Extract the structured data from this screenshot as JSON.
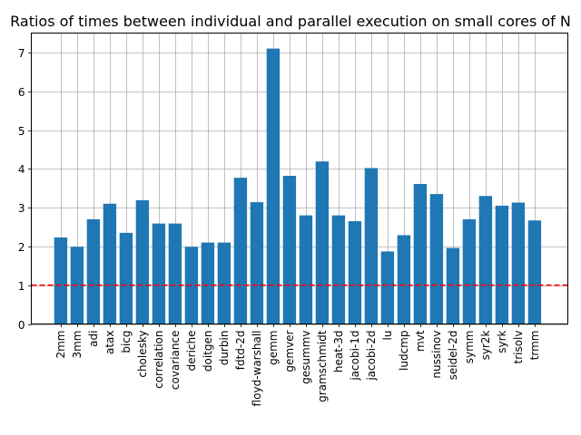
{
  "chart_data": {
    "type": "bar",
    "title": "Ratios of times between individual and parallel execution on small cores of N",
    "xlabel": "",
    "ylabel": "",
    "categories": [
      "2mm",
      "3mm",
      "adi",
      "atax",
      "bicg",
      "cholesky",
      "correlation",
      "covariance",
      "deriche",
      "doitgen",
      "durbin",
      "fdtd-2d",
      "floyd-warshall",
      "gemm",
      "gemver",
      "gesummv",
      "gramschmidt",
      "heat-3d",
      "jacobi-1d",
      "jacobi-2d",
      "lu",
      "ludcmp",
      "mvt",
      "nussinov",
      "seidel-2d",
      "symm",
      "syr2k",
      "syrk",
      "trisolv",
      "trmm"
    ],
    "values": [
      2.23,
      1.99,
      2.7,
      3.1,
      2.35,
      3.19,
      2.59,
      2.59,
      1.99,
      2.1,
      2.1,
      3.77,
      3.14,
      7.1,
      3.82,
      2.8,
      4.19,
      2.8,
      2.65,
      4.02,
      1.87,
      2.29,
      3.61,
      3.35,
      1.96,
      2.7,
      3.3,
      3.05,
      3.13,
      2.67
    ],
    "ylim": [
      0,
      7.5
    ],
    "yticks": [
      0,
      1,
      2,
      3,
      4,
      5,
      6,
      7
    ],
    "grid": true,
    "reference_line": {
      "y": 1,
      "style": "dashed",
      "color": "#ff0000"
    },
    "bar_color": "#1f77b4"
  }
}
